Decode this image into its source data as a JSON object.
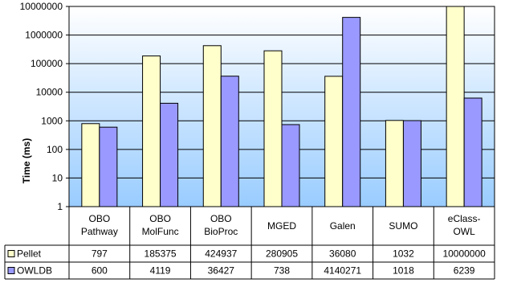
{
  "chart_data": {
    "type": "bar",
    "scale": "log",
    "ylabel": "Time (ms)",
    "ylim": [
      1,
      10000000
    ],
    "y_ticks": [
      "1",
      "10",
      "100",
      "1000",
      "10000",
      "100000",
      "1000000",
      "10000000"
    ],
    "categories": [
      [
        "OBO",
        "Pathway"
      ],
      [
        "OBO",
        "MolFunc"
      ],
      [
        "OBO",
        "BioProc"
      ],
      [
        "MGED"
      ],
      [
        "Galen"
      ],
      [
        "SUMO"
      ],
      [
        "eClass-",
        "OWL"
      ]
    ],
    "series": [
      {
        "name": "Pellet",
        "color": "#FFFFCC",
        "values": [
          797,
          185375,
          424937,
          280905,
          36080,
          1032,
          10000000
        ],
        "labels": [
          "797",
          "185375",
          "424937",
          "280905",
          "36080",
          "1032",
          "10000000"
        ]
      },
      {
        "name": "OWLDB",
        "color": "#9999FF",
        "values": [
          600,
          4119,
          36427,
          738,
          4140271,
          1018,
          6239
        ],
        "labels": [
          "600",
          "4119",
          "36427",
          "738",
          "4140271",
          "1018",
          "6239"
        ]
      }
    ],
    "grid": true,
    "legend": "data-table-left",
    "background_gradient": [
      "#ffffff",
      "#99ccff"
    ]
  }
}
